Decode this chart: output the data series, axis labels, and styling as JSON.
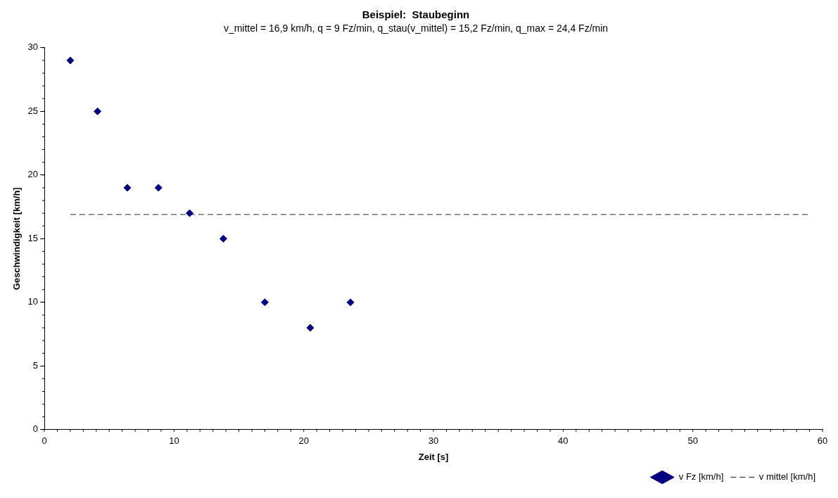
{
  "chart_data": {
    "type": "scatter",
    "title": "Beispiel:  Staubeginn",
    "subtitle": "v_mittel = 16,9 km/h, q = 9 Fz/min, q_stau(v_mittel) = 15,2 Fz/min, q_max = 24,4 Fz/min",
    "xlabel": "Zeit [s]",
    "ylabel": "Geschwindigkeit [km/h]",
    "series": [
      {
        "name": "v Fz [km/h]",
        "type": "scatter",
        "color": "#000080",
        "marker": "diamond",
        "x": [
          2.0,
          4.1,
          6.4,
          8.8,
          11.2,
          13.8,
          17.0,
          20.5,
          23.6
        ],
        "values": [
          29,
          25,
          19,
          19,
          17,
          15,
          10,
          8,
          10
        ]
      },
      {
        "name": "v mittel [km/h]",
        "type": "line",
        "color": "#555555",
        "marker": "none",
        "line_style": "dashed",
        "x": [
          2,
          59
        ],
        "values": [
          16.9,
          16.9
        ]
      }
    ],
    "xlim": [
      0,
      60
    ],
    "xticks": [
      0,
      10,
      20,
      30,
      40,
      50,
      60
    ],
    "ylim": [
      0,
      30
    ],
    "yticks": [
      0,
      5,
      10,
      15,
      20,
      25,
      30
    ],
    "grid": false,
    "legend": "bottom right"
  }
}
